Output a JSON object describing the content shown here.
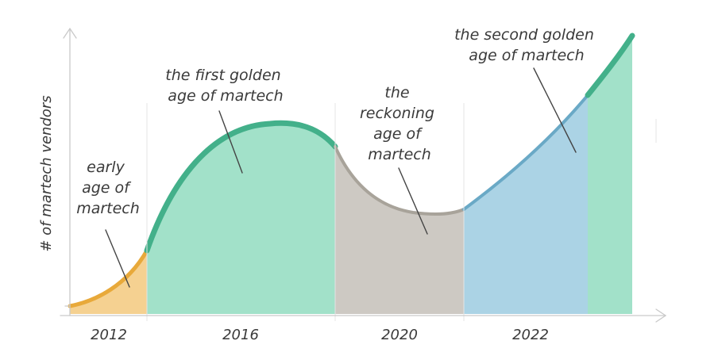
{
  "diagram": {
    "y_axis_label": "# of martech vendors",
    "x_labels": [
      "2012",
      "2016",
      "2020",
      "2022"
    ],
    "eras": [
      {
        "lines": [
          "early",
          "age of",
          "martech"
        ],
        "fill": "#f3c97e",
        "edge": "#e8a93a"
      },
      {
        "lines": [
          "the first golden",
          "age of martech"
        ],
        "fill": "#92dcc0",
        "edge": "#43b08a"
      },
      {
        "lines": [
          "the",
          "reckoning",
          "age of",
          "martech"
        ],
        "fill": "#c4c0b8",
        "edge": "#a8a39a"
      },
      {
        "lines": [
          "the second golden",
          "age of martech"
        ],
        "fill": "#9ccbe0",
        "edge": "#6aa9c6"
      }
    ],
    "final_segment": {
      "fill": "#92dcc0",
      "edge": "#43b08a"
    },
    "colors": {
      "axis": "#c9c9c9",
      "divider": "#e4e4e4",
      "text": "#3a3a3a",
      "pointer": "#444444"
    }
  }
}
